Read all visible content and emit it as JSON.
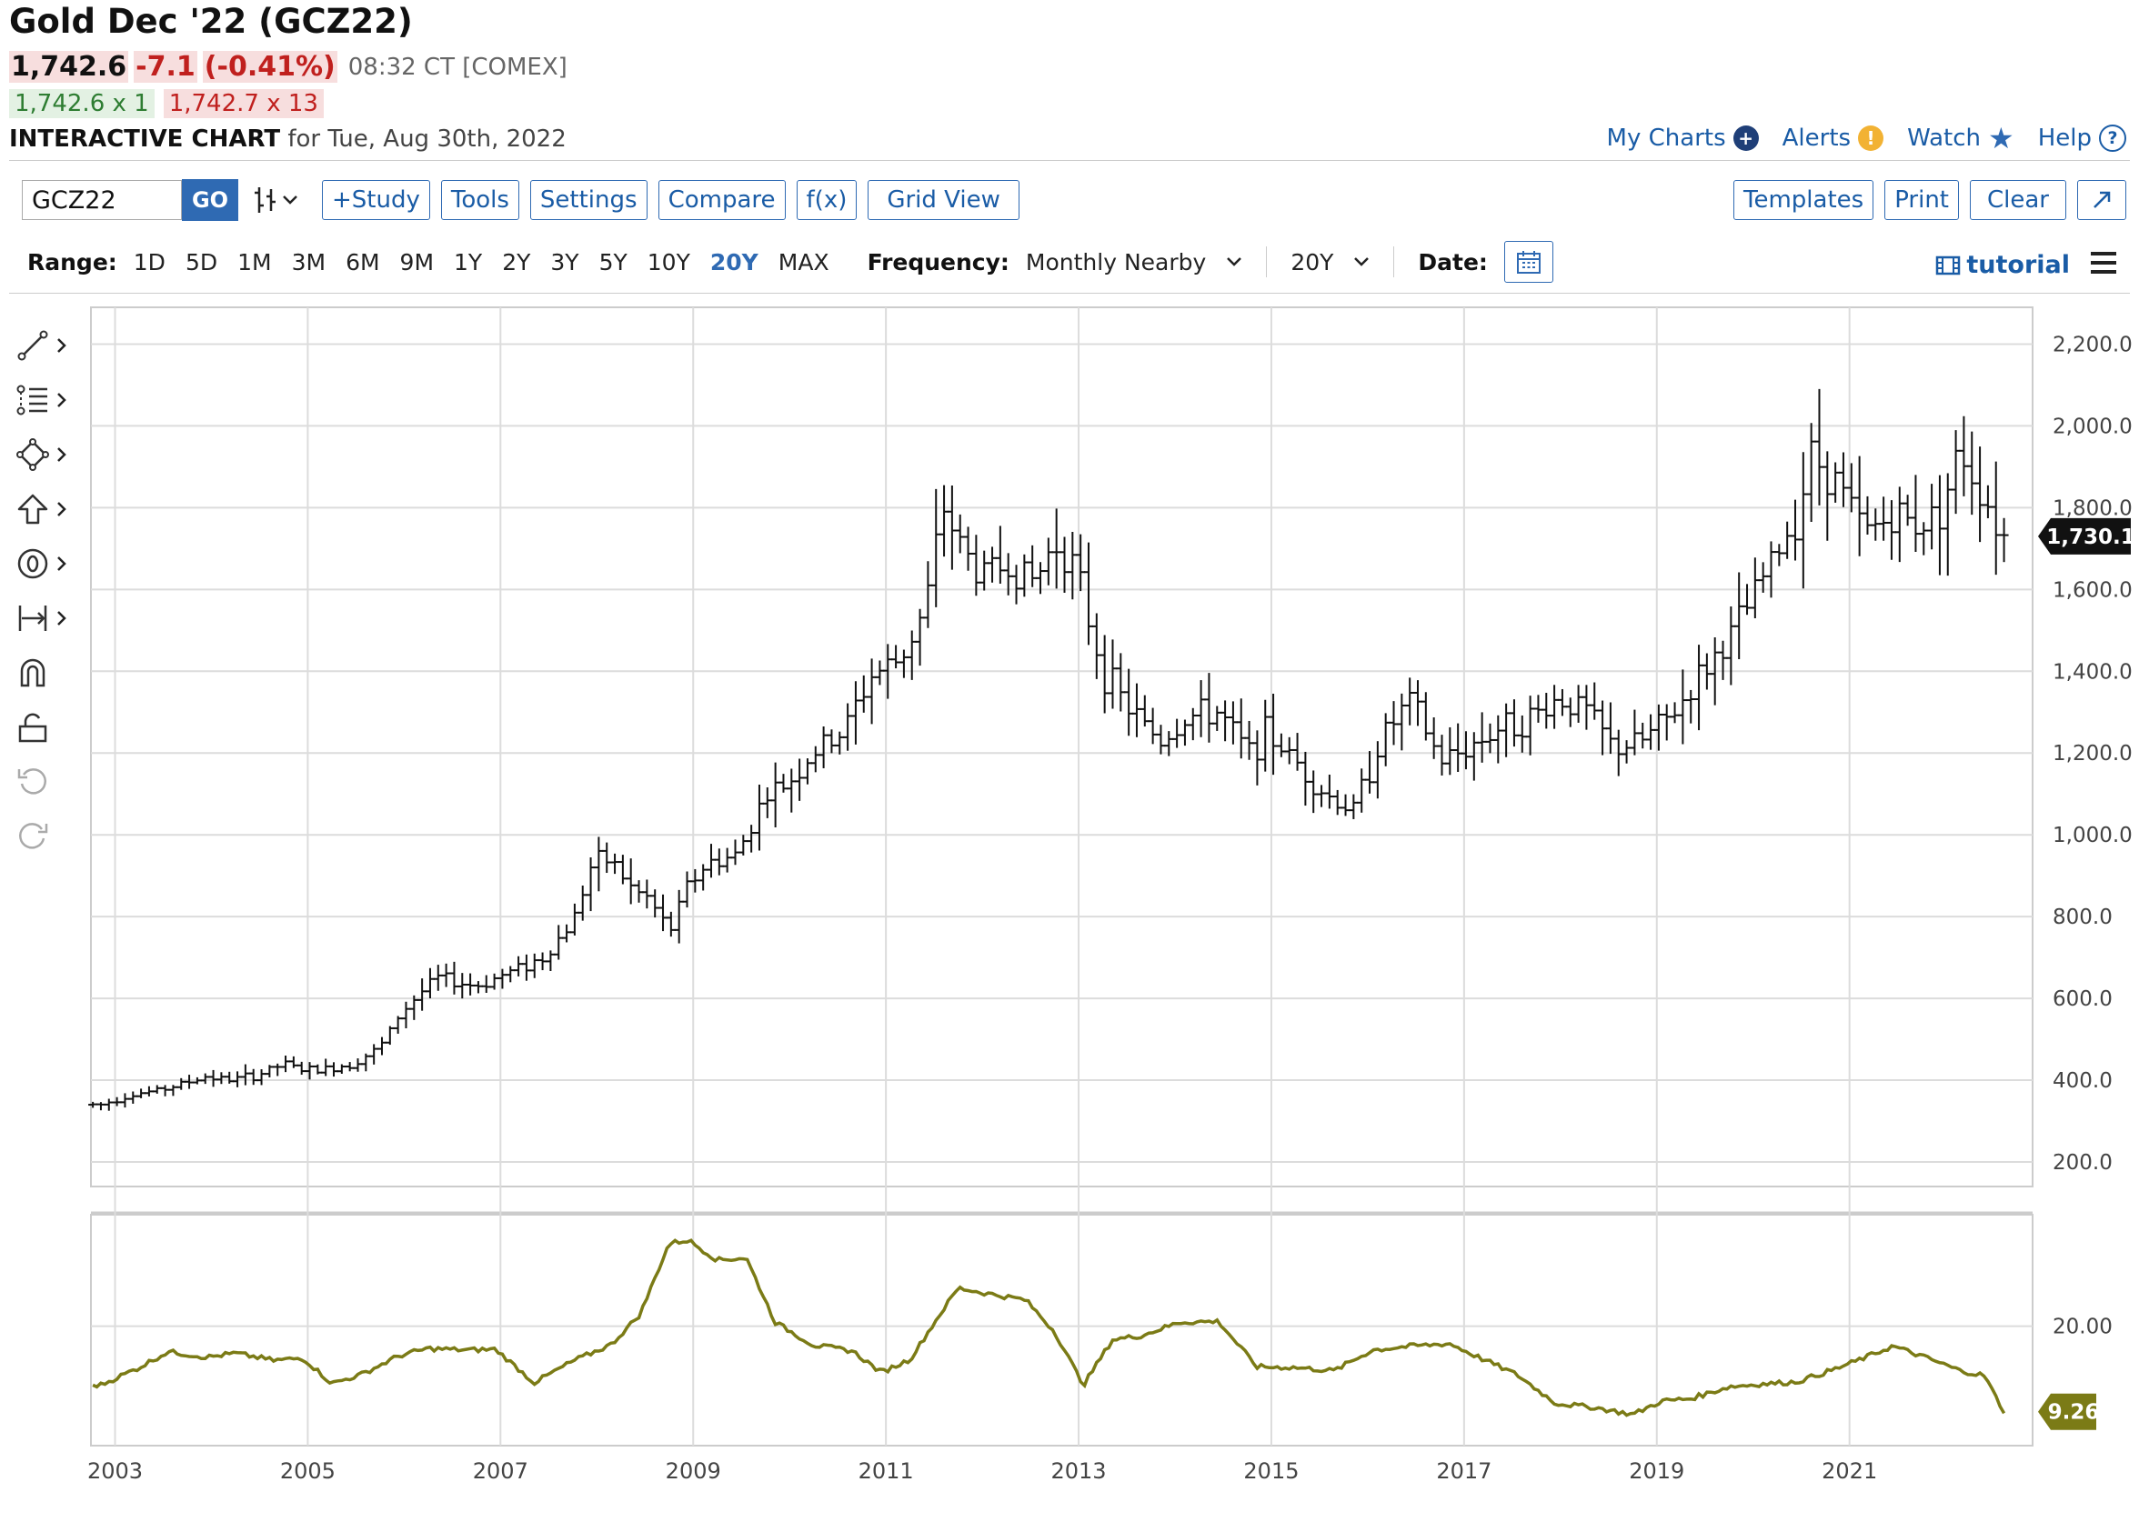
{
  "header": {
    "title": "Gold Dec '22 (GCZ22)",
    "last": "1,742.6",
    "change": "-7.1",
    "change_pct": "(-0.41%)",
    "time": "08:32 CT [COMEX]",
    "bid": "1,742.6 x 1",
    "ask": "1,742.7 x 13",
    "chart_label": "INTERACTIVE CHART",
    "chart_date": "for Tue, Aug 30th, 2022"
  },
  "toplinks": {
    "mycharts": "My Charts",
    "alerts": "Alerts",
    "watch": "Watch",
    "help": "Help"
  },
  "toolbar": {
    "symbol": "GCZ22",
    "go": "GO",
    "study": "+Study",
    "tools": "Tools",
    "settings": "Settings",
    "compare": "Compare",
    "fx": "f(x)",
    "gridview": "Grid View",
    "templates": "Templates",
    "print": "Print",
    "clear": "Clear"
  },
  "rangebar": {
    "range_label": "Range:",
    "ranges": [
      "1D",
      "5D",
      "1M",
      "3M",
      "6M",
      "9M",
      "1Y",
      "2Y",
      "3Y",
      "5Y",
      "10Y",
      "20Y",
      "MAX"
    ],
    "selected_range": "20Y",
    "frequency_label": "Frequency:",
    "frequency_value": "Monthly Nearby",
    "period_value": "20Y",
    "date_label": "Date:",
    "tutorial": "tutorial"
  },
  "colors": {
    "accent": "#2f6ab3",
    "down": "#c0201e",
    "up": "#2e7d32",
    "study": "#7b7b16"
  },
  "chart_data": {
    "type": "ohlc",
    "title": "",
    "frequency": "monthly",
    "x_ticks": [
      "2003",
      "2005",
      "2007",
      "2009",
      "2011",
      "2013",
      "2015",
      "2017",
      "2019",
      "2021"
    ],
    "y_ticks": [
      "200.0",
      "400.0",
      "600.0",
      "800.0",
      "1,000.0",
      "1,200.0",
      "1,400.0",
      "1,600.0",
      "1,800.0",
      "2,000.0",
      "2,200.0"
    ],
    "ylim": [
      140,
      2290
    ],
    "last_label": "1,730.1",
    "grid": true,
    "series": [
      {
        "name": "",
        "x": [
          2002.9,
          2003.2,
          2003.5,
          2003.8,
          2004.0,
          2004.2,
          2004.5,
          2004.8,
          2005.0,
          2005.2,
          2005.5,
          2005.8,
          2006.0,
          2006.2,
          2006.4,
          2006.6,
          2006.8,
          2007.0,
          2007.2,
          2007.5,
          2007.8,
          2008.0,
          2008.2,
          2008.4,
          2008.6,
          2008.8,
          2009.0,
          2009.2,
          2009.5,
          2009.8,
          2010.0,
          2010.3,
          2010.6,
          2010.9,
          2011.2,
          2011.45,
          2011.65,
          2011.8,
          2012.0,
          2012.3,
          2012.6,
          2012.8,
          2013.0,
          2013.3,
          2013.6,
          2013.9,
          2014.2,
          2014.5,
          2014.8,
          2015.0,
          2015.3,
          2015.6,
          2015.9,
          2016.2,
          2016.5,
          2016.8,
          2017.0,
          2017.4,
          2017.7,
          2018.0,
          2018.3,
          2018.6,
          2018.9,
          2019.2,
          2019.5,
          2019.8,
          2020.0,
          2020.2,
          2020.5,
          2020.65,
          2020.9,
          2021.2,
          2021.5,
          2021.8,
          2022.0,
          2022.2,
          2022.4,
          2022.65
        ],
        "close": [
          340,
          365,
          375,
          395,
          410,
          400,
          410,
          440,
          425,
          425,
          440,
          480,
          560,
          610,
          650,
          640,
          630,
          650,
          670,
          700,
          790,
          930,
          940,
          870,
          840,
          760,
          880,
          930,
          950,
          1100,
          1120,
          1200,
          1250,
          1390,
          1430,
          1550,
          1800,
          1720,
          1640,
          1660,
          1620,
          1720,
          1660,
          1400,
          1300,
          1230,
          1290,
          1300,
          1200,
          1250,
          1180,
          1100,
          1060,
          1240,
          1330,
          1180,
          1200,
          1260,
          1280,
          1330,
          1310,
          1210,
          1230,
          1290,
          1390,
          1480,
          1560,
          1650,
          1780,
          1930,
          1870,
          1740,
          1780,
          1760,
          1800,
          1940,
          1850,
          1730
        ]
      }
    ],
    "study": {
      "name": "",
      "last_label": "9.26",
      "y_ticks": [
        "20.00"
      ],
      "x": [
        2002.9,
        2003.3,
        2003.6,
        2004.0,
        2004.3,
        2004.7,
        2005.0,
        2005.3,
        2005.6,
        2006.0,
        2006.3,
        2006.7,
        2007.0,
        2007.4,
        2007.8,
        2008.2,
        2008.5,
        2008.8,
        2009.0,
        2009.3,
        2009.6,
        2009.9,
        2010.3,
        2010.7,
        2011.0,
        2011.3,
        2011.6,
        2011.8,
        2012.1,
        2012.5,
        2012.8,
        2013.1,
        2013.4,
        2013.7,
        2014.1,
        2014.5,
        2014.9,
        2015.3,
        2015.7,
        2016.1,
        2016.5,
        2016.9,
        2017.2,
        2017.6,
        2018.0,
        2018.4,
        2018.8,
        2019.1,
        2019.4,
        2019.8,
        2020.1,
        2020.5,
        2020.9,
        2021.2,
        2021.5,
        2021.9,
        2022.2,
        2022.45,
        2022.65
      ],
      "values": [
        12.6,
        14.8,
        16.8,
        16.1,
        16.6,
        15.7,
        16.0,
        12.8,
        13.9,
        16.3,
        17.2,
        17.0,
        17.1,
        12.9,
        15.6,
        17.7,
        21.5,
        30.4,
        30.8,
        28.3,
        28.6,
        20.5,
        17.6,
        16.9,
        14.2,
        15.8,
        21.3,
        24.8,
        24.1,
        23.3,
        19.3,
        12.6,
        18.3,
        18.8,
        20.5,
        20.6,
        14.9,
        14.8,
        14.4,
        17.0,
        17.5,
        17.8,
        16.1,
        13.9,
        10.3,
        9.8,
        8.9,
        10.6,
        10.9,
        12.4,
        12.7,
        13.0,
        14.6,
        16.0,
        17.5,
        15.8,
        14.4,
        13.8,
        9.26
      ]
    }
  }
}
